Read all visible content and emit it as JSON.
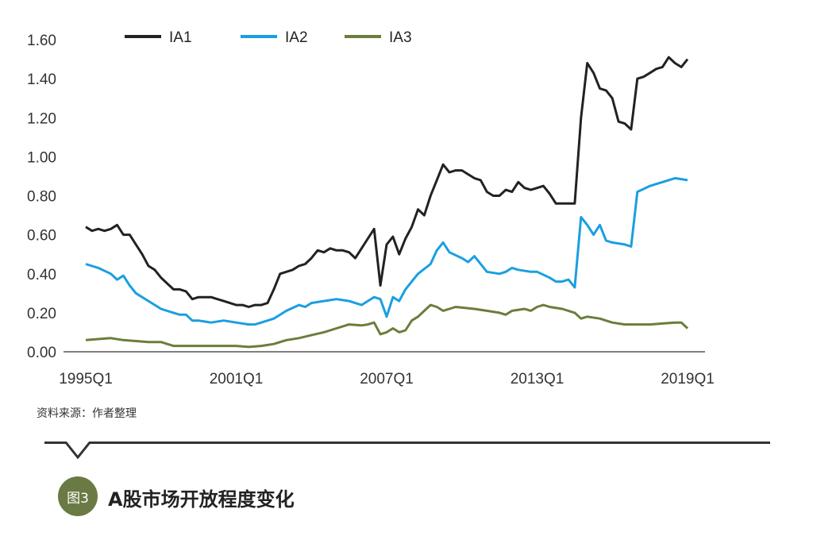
{
  "colors": {
    "IA1": "#222222",
    "IA2": "#1a9fe0",
    "IA3": "#6b7d3a",
    "badge": "#6a7a44"
  },
  "source_note": "资料来源：作者整理",
  "figure": {
    "badge": "图3",
    "title": "A股市场开放程度变化"
  },
  "chart_data": {
    "type": "line",
    "title": "",
    "xlabel": "",
    "ylabel": "",
    "x_range": [
      1995.0,
      2019.25
    ],
    "ylim": [
      0,
      1.6
    ],
    "grid": false,
    "legend": "top-left",
    "y_ticks": [
      "0.00",
      "0.20",
      "0.40",
      "0.60",
      "0.80",
      "1.00",
      "1.20",
      "1.40",
      "1.60"
    ],
    "x_ticks": [
      {
        "label": "1995Q1",
        "x": 1995.0
      },
      {
        "label": "2001Q1",
        "x": 2001.0
      },
      {
        "label": "2007Q1",
        "x": 2007.0
      },
      {
        "label": "2013Q1",
        "x": 2013.0
      },
      {
        "label": "2019Q1",
        "x": 2019.0
      }
    ],
    "series": [
      {
        "name": "IA1",
        "points": [
          [
            1995.0,
            0.64
          ],
          [
            1995.25,
            0.62
          ],
          [
            1995.5,
            0.63
          ],
          [
            1995.75,
            0.62
          ],
          [
            1996.0,
            0.63
          ],
          [
            1996.25,
            0.65
          ],
          [
            1996.5,
            0.6
          ],
          [
            1996.75,
            0.6
          ],
          [
            1997.0,
            0.55
          ],
          [
            1997.25,
            0.5
          ],
          [
            1997.5,
            0.44
          ],
          [
            1997.75,
            0.42
          ],
          [
            1998.0,
            0.38
          ],
          [
            1998.25,
            0.35
          ],
          [
            1998.5,
            0.32
          ],
          [
            1998.75,
            0.32
          ],
          [
            1999.0,
            0.31
          ],
          [
            1999.25,
            0.27
          ],
          [
            1999.5,
            0.28
          ],
          [
            1999.75,
            0.28
          ],
          [
            2000.0,
            0.28
          ],
          [
            2000.25,
            0.27
          ],
          [
            2000.5,
            0.26
          ],
          [
            2000.75,
            0.25
          ],
          [
            2001.0,
            0.24
          ],
          [
            2001.25,
            0.24
          ],
          [
            2001.5,
            0.23
          ],
          [
            2001.75,
            0.24
          ],
          [
            2002.0,
            0.24
          ],
          [
            2002.25,
            0.25
          ],
          [
            2002.5,
            0.32
          ],
          [
            2002.75,
            0.4
          ],
          [
            2003.0,
            0.41
          ],
          [
            2003.25,
            0.42
          ],
          [
            2003.5,
            0.44
          ],
          [
            2003.75,
            0.45
          ],
          [
            2004.0,
            0.48
          ],
          [
            2004.25,
            0.52
          ],
          [
            2004.5,
            0.51
          ],
          [
            2004.75,
            0.53
          ],
          [
            2005.0,
            0.52
          ],
          [
            2005.25,
            0.52
          ],
          [
            2005.5,
            0.51
          ],
          [
            2005.75,
            0.48
          ],
          [
            2006.0,
            0.53
          ],
          [
            2006.25,
            0.58
          ],
          [
            2006.5,
            0.63
          ],
          [
            2006.75,
            0.34
          ],
          [
            2007.0,
            0.55
          ],
          [
            2007.25,
            0.59
          ],
          [
            2007.5,
            0.5
          ],
          [
            2007.75,
            0.58
          ],
          [
            2008.0,
            0.64
          ],
          [
            2008.25,
            0.73
          ],
          [
            2008.5,
            0.7
          ],
          [
            2008.75,
            0.8
          ],
          [
            2009.0,
            0.88
          ],
          [
            2009.25,
            0.96
          ],
          [
            2009.5,
            0.92
          ],
          [
            2009.75,
            0.93
          ],
          [
            2010.0,
            0.93
          ],
          [
            2010.25,
            0.91
          ],
          [
            2010.5,
            0.89
          ],
          [
            2010.75,
            0.88
          ],
          [
            2011.0,
            0.82
          ],
          [
            2011.25,
            0.8
          ],
          [
            2011.5,
            0.8
          ],
          [
            2011.75,
            0.83
          ],
          [
            2012.0,
            0.82
          ],
          [
            2012.25,
            0.87
          ],
          [
            2012.5,
            0.84
          ],
          [
            2012.75,
            0.83
          ],
          [
            2013.0,
            0.84
          ],
          [
            2013.25,
            0.85
          ],
          [
            2013.5,
            0.81
          ],
          [
            2013.75,
            0.76
          ],
          [
            2014.0,
            0.76
          ],
          [
            2014.25,
            0.76
          ],
          [
            2014.5,
            0.76
          ],
          [
            2014.75,
            1.2
          ],
          [
            2015.0,
            1.48
          ],
          [
            2015.25,
            1.43
          ],
          [
            2015.5,
            1.35
          ],
          [
            2015.75,
            1.34
          ],
          [
            2016.0,
            1.3
          ],
          [
            2016.25,
            1.18
          ],
          [
            2016.5,
            1.17
          ],
          [
            2016.75,
            1.14
          ],
          [
            2017.0,
            1.4
          ],
          [
            2017.25,
            1.41
          ],
          [
            2017.5,
            1.43
          ],
          [
            2017.75,
            1.45
          ],
          [
            2018.0,
            1.46
          ],
          [
            2018.25,
            1.51
          ],
          [
            2018.5,
            1.48
          ],
          [
            2018.75,
            1.46
          ],
          [
            2019.0,
            1.5
          ]
        ]
      },
      {
        "name": "IA2",
        "points": [
          [
            1995.0,
            0.45
          ],
          [
            1995.5,
            0.43
          ],
          [
            1996.0,
            0.4
          ],
          [
            1996.25,
            0.37
          ],
          [
            1996.5,
            0.39
          ],
          [
            1996.75,
            0.34
          ],
          [
            1997.0,
            0.3
          ],
          [
            1997.5,
            0.26
          ],
          [
            1998.0,
            0.22
          ],
          [
            1998.5,
            0.2
          ],
          [
            1998.75,
            0.19
          ],
          [
            1999.0,
            0.19
          ],
          [
            1999.25,
            0.16
          ],
          [
            1999.5,
            0.16
          ],
          [
            2000.0,
            0.15
          ],
          [
            2000.5,
            0.16
          ],
          [
            2001.0,
            0.15
          ],
          [
            2001.5,
            0.14
          ],
          [
            2001.75,
            0.14
          ],
          [
            2002.0,
            0.15
          ],
          [
            2002.5,
            0.17
          ],
          [
            2003.0,
            0.21
          ],
          [
            2003.5,
            0.24
          ],
          [
            2003.75,
            0.23
          ],
          [
            2004.0,
            0.25
          ],
          [
            2004.5,
            0.26
          ],
          [
            2005.0,
            0.27
          ],
          [
            2005.5,
            0.26
          ],
          [
            2006.0,
            0.24
          ],
          [
            2006.25,
            0.26
          ],
          [
            2006.5,
            0.28
          ],
          [
            2006.75,
            0.27
          ],
          [
            2007.0,
            0.18
          ],
          [
            2007.25,
            0.28
          ],
          [
            2007.5,
            0.26
          ],
          [
            2007.75,
            0.32
          ],
          [
            2008.0,
            0.36
          ],
          [
            2008.25,
            0.4
          ],
          [
            2008.75,
            0.45
          ],
          [
            2009.0,
            0.52
          ],
          [
            2009.25,
            0.56
          ],
          [
            2009.5,
            0.51
          ],
          [
            2010.0,
            0.48
          ],
          [
            2010.25,
            0.46
          ],
          [
            2010.5,
            0.49
          ],
          [
            2011.0,
            0.41
          ],
          [
            2011.5,
            0.4
          ],
          [
            2011.75,
            0.41
          ],
          [
            2012.0,
            0.43
          ],
          [
            2012.25,
            0.42
          ],
          [
            2012.75,
            0.41
          ],
          [
            2013.0,
            0.41
          ],
          [
            2013.5,
            0.38
          ],
          [
            2013.75,
            0.36
          ],
          [
            2014.0,
            0.36
          ],
          [
            2014.25,
            0.37
          ],
          [
            2014.5,
            0.33
          ],
          [
            2014.75,
            0.69
          ],
          [
            2015.0,
            0.65
          ],
          [
            2015.25,
            0.6
          ],
          [
            2015.5,
            0.65
          ],
          [
            2015.75,
            0.57
          ],
          [
            2016.0,
            0.56
          ],
          [
            2016.5,
            0.55
          ],
          [
            2016.75,
            0.54
          ],
          [
            2017.0,
            0.82
          ],
          [
            2017.5,
            0.85
          ],
          [
            2018.0,
            0.87
          ],
          [
            2018.5,
            0.89
          ],
          [
            2019.0,
            0.88
          ]
        ]
      },
      {
        "name": "IA3",
        "points": [
          [
            1995.0,
            0.06
          ],
          [
            1995.5,
            0.065
          ],
          [
            1996.0,
            0.07
          ],
          [
            1996.5,
            0.06
          ],
          [
            1997.0,
            0.055
          ],
          [
            1997.5,
            0.05
          ],
          [
            1998.0,
            0.05
          ],
          [
            1998.25,
            0.04
          ],
          [
            1998.5,
            0.03
          ],
          [
            1999.0,
            0.03
          ],
          [
            2000.0,
            0.03
          ],
          [
            2001.0,
            0.03
          ],
          [
            2001.5,
            0.025
          ],
          [
            2002.0,
            0.03
          ],
          [
            2002.5,
            0.04
          ],
          [
            2003.0,
            0.06
          ],
          [
            2003.5,
            0.07
          ],
          [
            2004.0,
            0.085
          ],
          [
            2004.5,
            0.1
          ],
          [
            2005.0,
            0.12
          ],
          [
            2005.5,
            0.14
          ],
          [
            2006.0,
            0.135
          ],
          [
            2006.25,
            0.14
          ],
          [
            2006.5,
            0.15
          ],
          [
            2006.75,
            0.09
          ],
          [
            2007.0,
            0.1
          ],
          [
            2007.25,
            0.12
          ],
          [
            2007.5,
            0.1
          ],
          [
            2007.75,
            0.11
          ],
          [
            2008.0,
            0.16
          ],
          [
            2008.25,
            0.18
          ],
          [
            2008.5,
            0.21
          ],
          [
            2008.75,
            0.24
          ],
          [
            2009.0,
            0.23
          ],
          [
            2009.25,
            0.21
          ],
          [
            2009.5,
            0.22
          ],
          [
            2009.75,
            0.23
          ],
          [
            2010.5,
            0.22
          ],
          [
            2011.0,
            0.21
          ],
          [
            2011.5,
            0.2
          ],
          [
            2011.75,
            0.19
          ],
          [
            2012.0,
            0.21
          ],
          [
            2012.5,
            0.22
          ],
          [
            2012.75,
            0.21
          ],
          [
            2013.0,
            0.23
          ],
          [
            2013.25,
            0.24
          ],
          [
            2013.5,
            0.23
          ],
          [
            2014.0,
            0.22
          ],
          [
            2014.5,
            0.2
          ],
          [
            2014.75,
            0.17
          ],
          [
            2015.0,
            0.18
          ],
          [
            2015.5,
            0.17
          ],
          [
            2016.0,
            0.15
          ],
          [
            2016.5,
            0.14
          ],
          [
            2017.0,
            0.14
          ],
          [
            2017.5,
            0.14
          ],
          [
            2018.0,
            0.145
          ],
          [
            2018.5,
            0.15
          ],
          [
            2018.75,
            0.15
          ],
          [
            2019.0,
            0.12
          ]
        ]
      }
    ]
  }
}
